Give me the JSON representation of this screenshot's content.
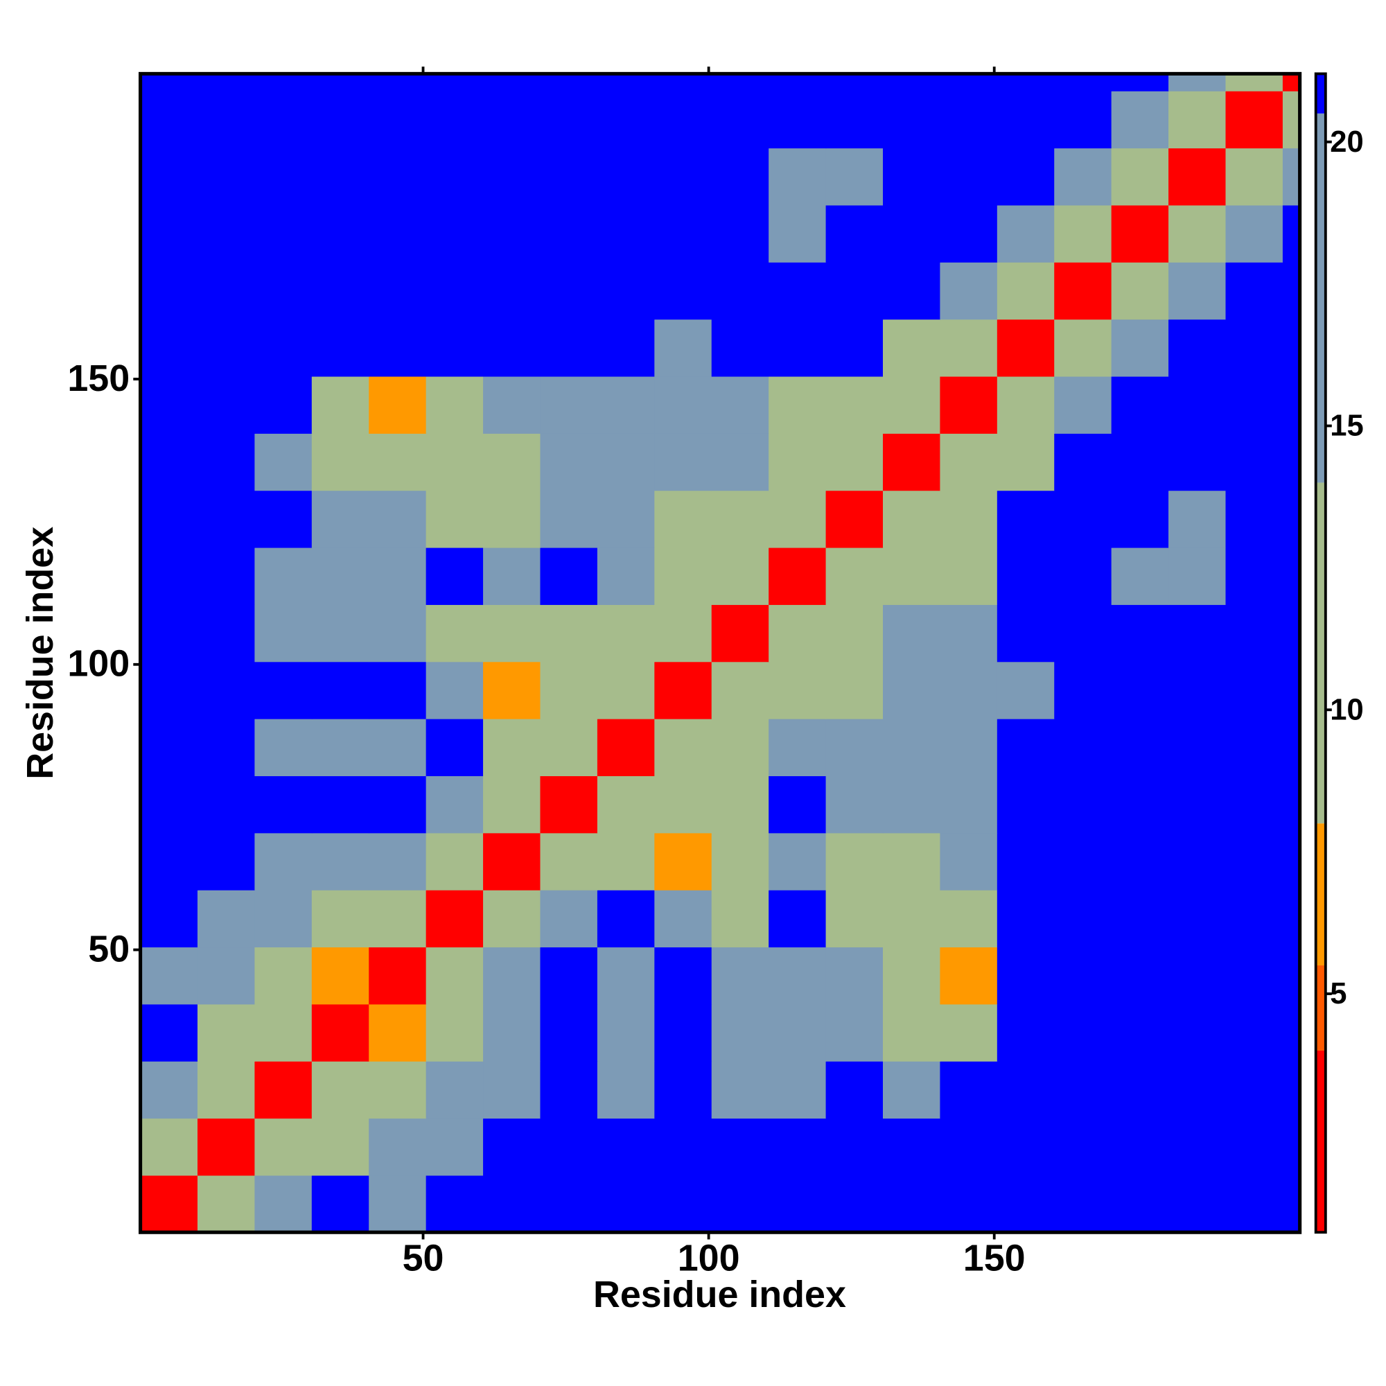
{
  "chart_data": {
    "type": "heatmap",
    "x_label": "Residue index",
    "y_label": "Residue index",
    "xlim": [
      0.5,
      203.5
    ],
    "ylim": [
      0.5,
      203.5
    ],
    "xticks": [
      50,
      100,
      150
    ],
    "yticks": [
      50,
      100,
      150
    ],
    "bins": [
      0.5,
      10.5,
      20.5,
      30.5,
      40.5,
      50.5,
      60.5,
      70.5,
      80.5,
      90.5,
      100.5,
      110.5,
      120.5,
      130.5,
      140.5,
      150.5,
      160.5,
      170.5,
      180.5,
      190.5,
      200.5,
      203.5
    ],
    "z": [
      [
        3,
        11,
        14,
        21,
        19,
        21,
        21,
        21,
        21,
        21,
        21,
        21,
        21,
        21,
        21,
        21,
        21,
        21,
        21,
        21,
        21
      ],
      [
        11,
        3,
        11,
        13,
        15,
        16,
        21,
        21,
        21,
        21,
        21,
        21,
        21,
        21,
        21,
        21,
        21,
        21,
        21,
        21,
        21
      ],
      [
        14,
        11,
        3,
        8,
        12,
        14,
        16,
        21,
        19,
        21,
        15,
        16,
        21,
        16,
        21,
        21,
        21,
        21,
        21,
        21,
        21
      ],
      [
        21,
        13,
        8,
        3,
        7,
        11,
        17,
        21,
        19,
        21,
        14,
        16,
        15,
        13,
        12,
        21,
        21,
        21,
        21,
        21,
        21
      ],
      [
        19,
        15,
        12,
        7,
        3,
        10,
        15,
        21,
        18,
        21,
        15,
        14,
        14,
        10,
        7,
        21,
        21,
        21,
        21,
        21,
        21
      ],
      [
        21,
        16,
        14,
        11,
        10,
        3,
        12,
        14,
        21,
        14,
        10,
        21,
        13,
        8,
        11,
        21,
        21,
        21,
        21,
        21,
        21
      ],
      [
        21,
        21,
        16,
        17,
        15,
        12,
        3,
        9,
        12,
        7,
        8,
        16,
        13,
        9,
        16,
        21,
        21,
        21,
        21,
        21,
        21
      ],
      [
        21,
        21,
        21,
        21,
        21,
        14,
        9,
        3,
        9,
        10,
        11,
        21,
        15,
        16,
        17,
        21,
        21,
        21,
        21,
        21,
        21
      ],
      [
        21,
        21,
        19,
        19,
        18,
        21,
        12,
        9,
        3,
        8,
        11,
        14,
        14,
        15,
        15,
        21,
        21,
        21,
        21,
        21,
        21
      ],
      [
        21,
        21,
        21,
        21,
        21,
        14,
        7,
        10,
        8,
        3,
        8,
        12,
        13,
        14,
        14,
        15,
        21,
        21,
        21,
        21,
        21
      ],
      [
        21,
        21,
        15,
        14,
        15,
        10,
        8,
        11,
        11,
        8,
        3,
        9,
        13,
        14,
        14,
        21,
        21,
        21,
        21,
        21,
        21
      ],
      [
        21,
        21,
        16,
        16,
        14,
        21,
        16,
        21,
        14,
        12,
        9,
        3,
        9,
        11,
        10,
        21,
        21,
        17,
        18,
        21,
        21
      ],
      [
        21,
        21,
        21,
        15,
        14,
        13,
        13,
        15,
        14,
        13,
        13,
        9,
        3,
        8,
        10,
        21,
        21,
        21,
        17,
        21,
        21
      ],
      [
        21,
        21,
        16,
        13,
        10,
        8,
        9,
        16,
        15,
        14,
        14,
        11,
        8,
        3,
        9,
        13,
        21,
        21,
        21,
        21,
        21
      ],
      [
        21,
        21,
        21,
        12,
        7,
        11,
        16,
        17,
        15,
        14,
        14,
        10,
        10,
        9,
        3,
        9,
        15,
        21,
        21,
        21,
        21
      ],
      [
        21,
        21,
        21,
        21,
        21,
        21,
        21,
        21,
        21,
        15,
        21,
        21,
        21,
        13,
        9,
        3,
        8,
        17,
        21,
        21,
        21
      ],
      [
        21,
        21,
        21,
        21,
        21,
        21,
        21,
        21,
        21,
        21,
        21,
        21,
        21,
        21,
        15,
        8,
        3,
        10,
        17,
        21,
        21
      ],
      [
        21,
        21,
        21,
        21,
        21,
        21,
        21,
        21,
        21,
        21,
        21,
        17,
        21,
        21,
        21,
        17,
        10,
        3,
        8,
        16,
        21
      ],
      [
        21,
        21,
        21,
        21,
        21,
        21,
        21,
        21,
        21,
        21,
        21,
        18,
        17,
        21,
        21,
        21,
        17,
        8,
        3,
        10,
        17
      ],
      [
        21,
        21,
        21,
        21,
        21,
        21,
        21,
        21,
        21,
        21,
        21,
        21,
        21,
        21,
        21,
        21,
        21,
        16,
        10,
        3,
        10
      ],
      [
        21,
        21,
        21,
        21,
        21,
        21,
        21,
        21,
        21,
        21,
        21,
        21,
        21,
        21,
        21,
        21,
        21,
        21,
        17,
        10,
        3
      ]
    ],
    "zlim": [
      0.8,
      21.2
    ],
    "zticks": [
      5,
      10,
      15,
      20
    ],
    "colorscale": [
      [
        0.8,
        "#ff0000"
      ],
      [
        4,
        "#ff5a00"
      ],
      [
        5.5,
        "#ff9900"
      ],
      [
        8,
        "#a6bc8c"
      ],
      [
        14,
        "#7d9bb6"
      ],
      [
        20.5,
        "#0000ff"
      ]
    ]
  }
}
